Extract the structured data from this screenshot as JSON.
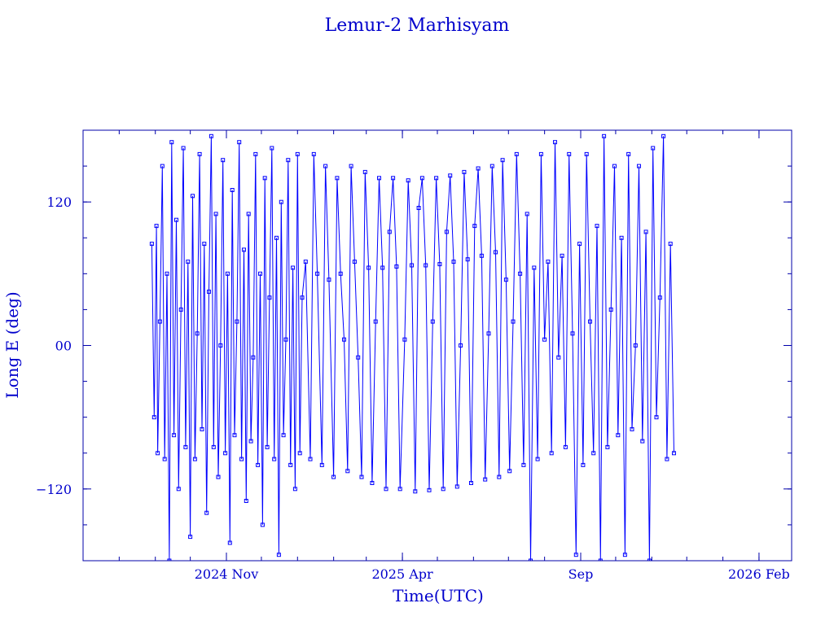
{
  "chart_data": {
    "type": "scatter",
    "title": "Lemur-2 Marhisyam",
    "xlabel": "Time(UTC)",
    "ylabel": "Long E (deg)",
    "xlim": [
      "2024-07-01",
      "2026-03-01"
    ],
    "ylim": [
      -180,
      180
    ],
    "x_ticks": [
      {
        "date": "2024-11-01",
        "label": "2024 Nov"
      },
      {
        "date": "2025-04-01",
        "label": "2025 Apr"
      },
      {
        "date": "2025-09-01",
        "label": "Sep"
      },
      {
        "date": "2026-02-01",
        "label": "2026 Feb"
      }
    ],
    "y_ticks": [
      {
        "value": 120,
        "label": "120"
      },
      {
        "value": 0,
        "label": "00"
      },
      {
        "value": -120,
        "label": "−120"
      }
    ],
    "series": [
      {
        "points": [
          [
            "2024-08-29",
            85
          ],
          [
            "2024-08-31",
            -60
          ],
          [
            "2024-09-02",
            100
          ],
          [
            "2024-09-03",
            -90
          ],
          [
            "2024-09-05",
            20
          ],
          [
            "2024-09-07",
            150
          ],
          [
            "2024-09-09",
            -95
          ],
          [
            "2024-09-11",
            60
          ],
          [
            "2024-09-13",
            -180
          ],
          [
            "2024-09-15",
            170
          ],
          [
            "2024-09-17",
            -75
          ],
          [
            "2024-09-19",
            105
          ],
          [
            "2024-09-21",
            -120
          ],
          [
            "2024-09-23",
            30
          ],
          [
            "2024-09-25",
            165
          ],
          [
            "2024-09-27",
            -85
          ],
          [
            "2024-09-29",
            70
          ],
          [
            "2024-10-01",
            -160
          ],
          [
            "2024-10-03",
            125
          ],
          [
            "2024-10-05",
            -95
          ],
          [
            "2024-10-07",
            10
          ],
          [
            "2024-10-09",
            160
          ],
          [
            "2024-10-11",
            -70
          ],
          [
            "2024-10-13",
            85
          ],
          [
            "2024-10-15",
            -140
          ],
          [
            "2024-10-17",
            45
          ],
          [
            "2024-10-19",
            175
          ],
          [
            "2024-10-21",
            -85
          ],
          [
            "2024-10-23",
            110
          ],
          [
            "2024-10-25",
            -110
          ],
          [
            "2024-10-27",
            0
          ],
          [
            "2024-10-29",
            155
          ],
          [
            "2024-10-31",
            -90
          ],
          [
            "2024-11-02",
            60
          ],
          [
            "2024-11-04",
            -165
          ],
          [
            "2024-11-06",
            130
          ],
          [
            "2024-11-08",
            -75
          ],
          [
            "2024-11-10",
            20
          ],
          [
            "2024-11-12",
            170
          ],
          [
            "2024-11-14",
            -95
          ],
          [
            "2024-11-16",
            80
          ],
          [
            "2024-11-18",
            -130
          ],
          [
            "2024-11-20",
            110
          ],
          [
            "2024-11-22",
            -80
          ],
          [
            "2024-11-24",
            -10
          ],
          [
            "2024-11-26",
            160
          ],
          [
            "2024-11-28",
            -100
          ],
          [
            "2024-11-30",
            60
          ],
          [
            "2024-12-02",
            -150
          ],
          [
            "2024-12-04",
            140
          ],
          [
            "2024-12-06",
            -85
          ],
          [
            "2024-12-08",
            40
          ],
          [
            "2024-12-10",
            165
          ],
          [
            "2024-12-12",
            -95
          ],
          [
            "2024-12-14",
            90
          ],
          [
            "2024-12-16",
            -175
          ],
          [
            "2024-12-18",
            120
          ],
          [
            "2024-12-20",
            -75
          ],
          [
            "2024-12-22",
            5
          ],
          [
            "2024-12-24",
            155
          ],
          [
            "2024-12-26",
            -100
          ],
          [
            "2024-12-28",
            65
          ],
          [
            "2024-12-30",
            -120
          ],
          [
            "2025-01-01",
            160
          ],
          [
            "2025-01-03",
            -90
          ],
          [
            "2025-01-05",
            40
          ],
          [
            "2025-01-08",
            70
          ],
          [
            "2025-01-12",
            -95
          ],
          [
            "2025-01-15",
            160
          ],
          [
            "2025-01-18",
            60
          ],
          [
            "2025-01-22",
            -100
          ],
          [
            "2025-01-25",
            150
          ],
          [
            "2025-01-28",
            55
          ],
          [
            "2025-02-01",
            -110
          ],
          [
            "2025-02-04",
            140
          ],
          [
            "2025-02-07",
            60
          ],
          [
            "2025-02-10",
            5
          ],
          [
            "2025-02-13",
            -105
          ],
          [
            "2025-02-16",
            150
          ],
          [
            "2025-02-19",
            70
          ],
          [
            "2025-02-22",
            -10
          ],
          [
            "2025-02-25",
            -110
          ],
          [
            "2025-02-28",
            145
          ],
          [
            "2025-03-03",
            65
          ],
          [
            "2025-03-06",
            -115
          ],
          [
            "2025-03-09",
            20
          ],
          [
            "2025-03-12",
            140
          ],
          [
            "2025-03-15",
            65
          ],
          [
            "2025-03-18",
            -120
          ],
          [
            "2025-03-21",
            95
          ],
          [
            "2025-03-24",
            140
          ],
          [
            "2025-03-27",
            66
          ],
          [
            "2025-03-30",
            -120
          ],
          [
            "2025-04-03",
            5
          ],
          [
            "2025-04-06",
            138
          ],
          [
            "2025-04-09",
            67
          ],
          [
            "2025-04-12",
            -122
          ],
          [
            "2025-04-15",
            115
          ],
          [
            "2025-04-18",
            140
          ],
          [
            "2025-04-21",
            67
          ],
          [
            "2025-04-24",
            -121
          ],
          [
            "2025-04-27",
            20
          ],
          [
            "2025-04-30",
            140
          ],
          [
            "2025-05-03",
            68
          ],
          [
            "2025-05-06",
            -120
          ],
          [
            "2025-05-09",
            95
          ],
          [
            "2025-05-12",
            142
          ],
          [
            "2025-05-15",
            70
          ],
          [
            "2025-05-18",
            -118
          ],
          [
            "2025-05-21",
            0
          ],
          [
            "2025-05-24",
            145
          ],
          [
            "2025-05-27",
            72
          ],
          [
            "2025-05-30",
            -115
          ],
          [
            "2025-06-02",
            100
          ],
          [
            "2025-06-05",
            148
          ],
          [
            "2025-06-08",
            75
          ],
          [
            "2025-06-11",
            -112
          ],
          [
            "2025-06-14",
            10
          ],
          [
            "2025-06-17",
            150
          ],
          [
            "2025-06-20",
            78
          ],
          [
            "2025-06-23",
            -110
          ],
          [
            "2025-06-26",
            155
          ],
          [
            "2025-06-29",
            55
          ],
          [
            "2025-07-02",
            -105
          ],
          [
            "2025-07-05",
            20
          ],
          [
            "2025-07-08",
            160
          ],
          [
            "2025-07-11",
            60
          ],
          [
            "2025-07-14",
            -100
          ],
          [
            "2025-07-17",
            110
          ],
          [
            "2025-07-20",
            -180
          ],
          [
            "2025-07-23",
            65
          ],
          [
            "2025-07-26",
            -95
          ],
          [
            "2025-07-29",
            160
          ],
          [
            "2025-08-01",
            5
          ],
          [
            "2025-08-04",
            70
          ],
          [
            "2025-08-07",
            -90
          ],
          [
            "2025-08-10",
            170
          ],
          [
            "2025-08-13",
            -10
          ],
          [
            "2025-08-16",
            75
          ],
          [
            "2025-08-19",
            -85
          ],
          [
            "2025-08-22",
            160
          ],
          [
            "2025-08-25",
            10
          ],
          [
            "2025-08-28",
            -175
          ],
          [
            "2025-08-31",
            85
          ],
          [
            "2025-09-03",
            -100
          ],
          [
            "2025-09-06",
            160
          ],
          [
            "2025-09-09",
            20
          ],
          [
            "2025-09-12",
            -90
          ],
          [
            "2025-09-15",
            100
          ],
          [
            "2025-09-18",
            -180
          ],
          [
            "2025-09-21",
            175
          ],
          [
            "2025-09-24",
            -85
          ],
          [
            "2025-09-27",
            30
          ],
          [
            "2025-09-30",
            150
          ],
          [
            "2025-10-03",
            -75
          ],
          [
            "2025-10-06",
            90
          ],
          [
            "2025-10-09",
            -175
          ],
          [
            "2025-10-12",
            160
          ],
          [
            "2025-10-15",
            -70
          ],
          [
            "2025-10-18",
            0
          ],
          [
            "2025-10-21",
            150
          ],
          [
            "2025-10-24",
            -80
          ],
          [
            "2025-10-27",
            95
          ],
          [
            "2025-10-30",
            -180
          ],
          [
            "2025-11-02",
            165
          ],
          [
            "2025-11-05",
            -60
          ],
          [
            "2025-11-08",
            40
          ],
          [
            "2025-11-11",
            175
          ],
          [
            "2025-11-14",
            -95
          ],
          [
            "2025-11-17",
            85
          ],
          [
            "2025-11-20",
            -90
          ]
        ]
      }
    ]
  }
}
